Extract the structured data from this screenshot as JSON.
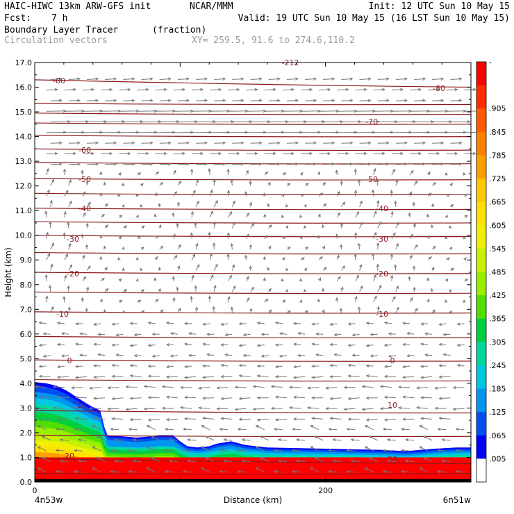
{
  "header": {
    "model": "HAIC-HIWC 13km ARW-GFS init",
    "org": "NCAR/MMM",
    "init": "Init: 12 UTC Sun 10 May 15",
    "fcst_label": "Fcst:",
    "fcst_value": "7 h",
    "valid": "Valid: 19 UTC Sun 10 May 15 (16 LST Sun 10 May 15)",
    "field_name": "Boundary Layer Tracer",
    "field_units": "(fraction)",
    "vector_name": "Circulation vectors",
    "xy_range": "XY= 259.5, 91.6 to 274.6,110.2"
  },
  "chart_data": {
    "type": "heatmap",
    "xlabel": "Distance (km)",
    "ylabel": "Height (km)",
    "xlim": [
      0,
      300
    ],
    "ylim": [
      0,
      17
    ],
    "x_ticks": [
      {
        "value": 0,
        "label": "0"
      },
      {
        "value": 200,
        "label": "200"
      }
    ],
    "x_end_labels": {
      "left": "4n53w",
      "right": "6n51w"
    },
    "y_ticks": [
      "0.0",
      "1.0",
      "2.0",
      "3.0",
      "4.0",
      "5.0",
      "6.0",
      "7.0",
      "8.0",
      "9.0",
      "10.0",
      "11.0",
      "12.0",
      "13.0",
      "14.0",
      "15.0",
      "16.0",
      "17.0"
    ],
    "colorbar": {
      "labels": [
        "-",
        ".905",
        ".845",
        ".785",
        ".725",
        ".665",
        ".605",
        ".545",
        ".485",
        ".425",
        ".365",
        ".305",
        ".245",
        ".185",
        ".125",
        ".065",
        ".005"
      ],
      "colors": [
        "#ff0000",
        "#ff2a00",
        "#ff5a00",
        "#ff8000",
        "#ffa000",
        "#ffc800",
        "#ffe000",
        "#f0f000",
        "#c8f000",
        "#96f000",
        "#50e000",
        "#00d040",
        "#00d8a0",
        "#00c8e0",
        "#0096f0",
        "#0050f0",
        "#0000ff",
        "#ffffff"
      ]
    },
    "tracer_top_km": [
      [
        0,
        4.05
      ],
      [
        8,
        4.0
      ],
      [
        15,
        3.9
      ],
      [
        22,
        3.7
      ],
      [
        30,
        3.4
      ],
      [
        38,
        3.1
      ],
      [
        45,
        2.9
      ],
      [
        48,
        2.2
      ],
      [
        50,
        1.9
      ],
      [
        60,
        1.85
      ],
      [
        70,
        1.8
      ],
      [
        80,
        1.85
      ],
      [
        85,
        1.9
      ],
      [
        95,
        1.9
      ],
      [
        100,
        1.65
      ],
      [
        105,
        1.45
      ],
      [
        112,
        1.4
      ],
      [
        120,
        1.45
      ],
      [
        125,
        1.55
      ],
      [
        135,
        1.65
      ],
      [
        145,
        1.5
      ],
      [
        160,
        1.4
      ],
      [
        200,
        1.35
      ],
      [
        240,
        1.3
      ],
      [
        255,
        1.25
      ],
      [
        265,
        1.3
      ],
      [
        275,
        1.35
      ],
      [
        290,
        1.4
      ],
      [
        300,
        1.4
      ]
    ],
    "contour_labels": [
      "-80",
      "-80",
      "-70",
      "-60",
      "-50",
      "-50",
      "-40",
      "-40",
      "-30",
      "-30",
      "-20",
      "-20",
      "-10",
      "-10",
      "0",
      "0",
      "10",
      "10",
      "20",
      "20",
      "-212"
    ]
  }
}
